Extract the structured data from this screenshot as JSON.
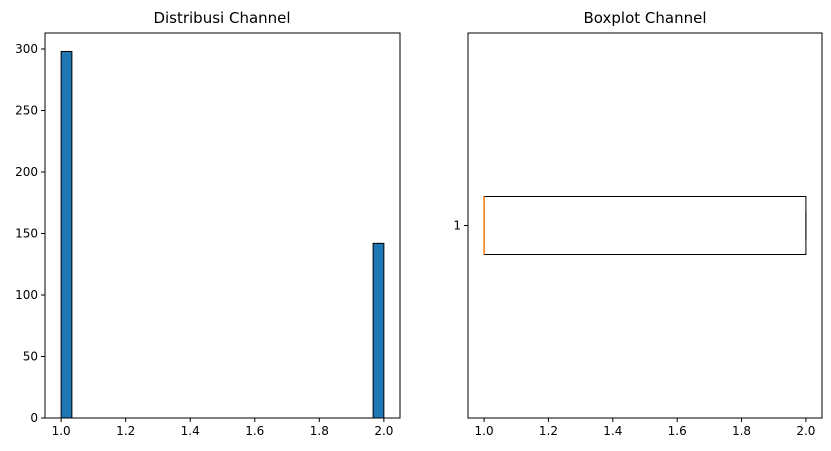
{
  "colors": {
    "bar_fill": "#1f77b4",
    "bar_edge": "#000000",
    "median_line": "#ff7f0e",
    "axes_edge": "#000000",
    "background": "#ffffff"
  },
  "chart_data": [
    {
      "type": "bar",
      "title": "Distribusi Channel",
      "xlabel": "",
      "ylabel": "",
      "bins": [
        {
          "x_start": 1.0,
          "x_end": 1.0333,
          "count": 298
        },
        {
          "x_start": 1.9667,
          "x_end": 2.0,
          "count": 142
        }
      ],
      "xlim": [
        0.95,
        2.05
      ],
      "ylim": [
        0,
        313
      ],
      "xticks": [
        1.0,
        1.2,
        1.4,
        1.6,
        1.8,
        2.0
      ],
      "xtick_labels": [
        "1.0",
        "1.2",
        "1.4",
        "1.6",
        "1.8",
        "2.0"
      ],
      "yticks": [
        0,
        50,
        100,
        150,
        200,
        250,
        300
      ],
      "ytick_labels": [
        "0",
        "50",
        "100",
        "150",
        "200",
        "250",
        "300"
      ],
      "grid": false
    },
    {
      "type": "box",
      "title": "Boxplot Channel",
      "xlabel": "",
      "ylabel": "",
      "orientation": "horizontal",
      "boxes": [
        {
          "label": "1",
          "min": 1.0,
          "q1": 1.0,
          "median": 1.0,
          "q3": 2.0,
          "max": 2.0
        }
      ],
      "xlim": [
        0.95,
        2.05
      ],
      "xticks": [
        1.0,
        1.2,
        1.4,
        1.6,
        1.8,
        2.0
      ],
      "xtick_labels": [
        "1.0",
        "1.2",
        "1.4",
        "1.6",
        "1.8",
        "2.0"
      ],
      "ytick_labels": [
        "1"
      ],
      "grid": false
    }
  ]
}
